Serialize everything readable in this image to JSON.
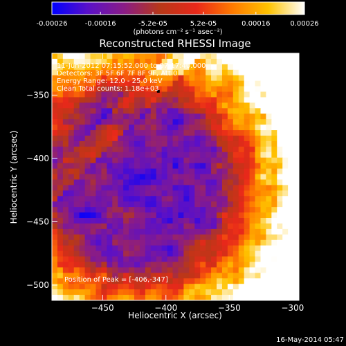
{
  "colorbar": {
    "ticks": [
      {
        "value": -0.00026,
        "label": "-0.00026"
      },
      {
        "value": -0.00016,
        "label": "-0.00016"
      },
      {
        "value": -5.2e-05,
        "label": "-5.2e-05"
      },
      {
        "value": 5.2e-05,
        "label": "5.2e-05"
      },
      {
        "value": 0.00016,
        "label": "0.00016"
      },
      {
        "value": 0.00026,
        "label": "0.00026"
      }
    ],
    "range": [
      -0.00026,
      0.00026
    ],
    "units": "(photons cm⁻² s⁻¹ asec⁻²)",
    "stops": [
      "#0000ff",
      "#5a10c8",
      "#8a1c86",
      "#b83818",
      "#e8281a",
      "#ff7a00",
      "#ffc300",
      "#ffffff"
    ]
  },
  "chart_data": {
    "type": "heatmap",
    "title": "Reconstructed RHESSI Image",
    "xlabel": "Heliocentric X (arcsec)",
    "ylabel": "Heliocentric Y (arcsec)",
    "xlim": [
      -490,
      -295
    ],
    "ylim": [
      -512,
      -317
    ],
    "xticks": [
      {
        "value": -450,
        "label": "−450"
      },
      {
        "value": -400,
        "label": "−400"
      },
      {
        "value": -350,
        "label": "−350"
      },
      {
        "value": -300,
        "label": "−300"
      }
    ],
    "yticks": [
      {
        "value": -350,
        "label": "−350"
      },
      {
        "value": -400,
        "label": "−400"
      },
      {
        "value": -450,
        "label": "−450"
      },
      {
        "value": -500,
        "label": "−500"
      }
    ],
    "annotations": [
      "11-Jun-2012 07:15:52.000 to 07:17:40.000",
      "Detectors: 3F 5F 6F 7F 8F 9F, Att 0",
      "Energy Range: 12.0 - 25.0 keV",
      "Clean     Total counts: 1.18e+03"
    ],
    "peak_label": "Position of Peak = [-406,-347]",
    "peak": [
      -406,
      -347
    ],
    "grid": false
  },
  "footer": {
    "date": "16-May-2014 05:47"
  }
}
